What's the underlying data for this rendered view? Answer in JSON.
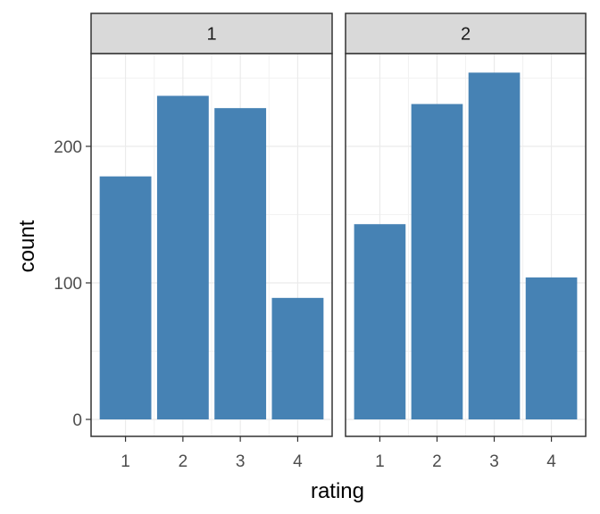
{
  "chart_data": {
    "type": "bar",
    "xlabel": "rating",
    "ylabel": "count",
    "ylim": [
      -12,
      277
    ],
    "yticks": [
      0,
      100,
      200
    ],
    "categories": [
      "1",
      "2",
      "3",
      "4"
    ],
    "grid": true,
    "bar_color": "#4682B4",
    "panels": [
      {
        "label": "1",
        "values": [
          178,
          237,
          228,
          89
        ]
      },
      {
        "label": "2",
        "values": [
          143,
          231,
          254,
          104
        ]
      }
    ]
  }
}
